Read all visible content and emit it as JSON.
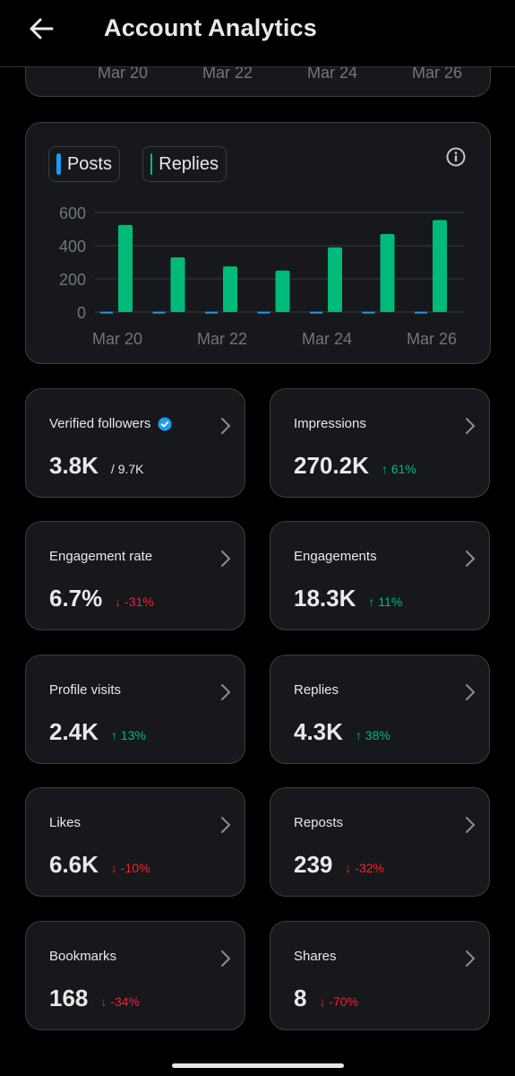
{
  "header": {
    "title": "Account Analytics",
    "back_icon": "arrow-left-icon"
  },
  "previous_chart": {
    "x_labels": [
      "Mar 20",
      "Mar 22",
      "Mar 24",
      "Mar 26"
    ]
  },
  "legend": {
    "posts_label": "Posts",
    "replies_label": "Replies",
    "posts_color": "#1d9bf0",
    "replies_color": "#00ba7c"
  },
  "chart_data": {
    "type": "bar",
    "categories": [
      "Mar 20",
      "Mar 21",
      "Mar 22",
      "Mar 23",
      "Mar 24",
      "Mar 25",
      "Mar 26"
    ],
    "x_tick_labels": [
      "Mar 20",
      "Mar 22",
      "Mar 24",
      "Mar 26"
    ],
    "y_ticks": [
      0,
      200,
      400,
      600
    ],
    "ylim": [
      0,
      600
    ],
    "series": [
      {
        "name": "Posts",
        "color": "#1d9bf0",
        "values": [
          2,
          2,
          2,
          2,
          2,
          2,
          2
        ]
      },
      {
        "name": "Replies",
        "color": "#00ba7c",
        "values": [
          525,
          330,
          275,
          250,
          390,
          470,
          555
        ]
      }
    ],
    "grid": true,
    "legend_position": "top-left"
  },
  "stats": {
    "verified_followers": {
      "label": "Verified followers",
      "value": "3.8K",
      "sub": "/ 9.7K"
    },
    "impressions": {
      "label": "Impressions",
      "value": "270.2K",
      "change": "↑ 61%",
      "direction": "up"
    },
    "engagement_rate": {
      "label": "Engagement rate",
      "value": "6.7%",
      "change": "↓ -31%",
      "direction": "down"
    },
    "engagements": {
      "label": "Engagements",
      "value": "18.3K",
      "change": "↑ 11%",
      "direction": "up"
    },
    "profile_visits": {
      "label": "Profile visits",
      "value": "2.4K",
      "change": "↑ 13%",
      "direction": "up"
    },
    "replies": {
      "label": "Replies",
      "value": "4.3K",
      "change": "↑ 38%",
      "direction": "up"
    },
    "likes": {
      "label": "Likes",
      "value": "6.6K",
      "change": "↓ -10%",
      "direction": "down"
    },
    "reposts": {
      "label": "Reposts",
      "value": "239",
      "change": "↓ -32%",
      "direction": "down"
    },
    "bookmarks": {
      "label": "Bookmarks",
      "value": "168",
      "change": "↓ -34%",
      "direction": "down"
    },
    "shares": {
      "label": "Shares",
      "value": "8",
      "change": "↓ -70%",
      "direction": "down"
    }
  }
}
